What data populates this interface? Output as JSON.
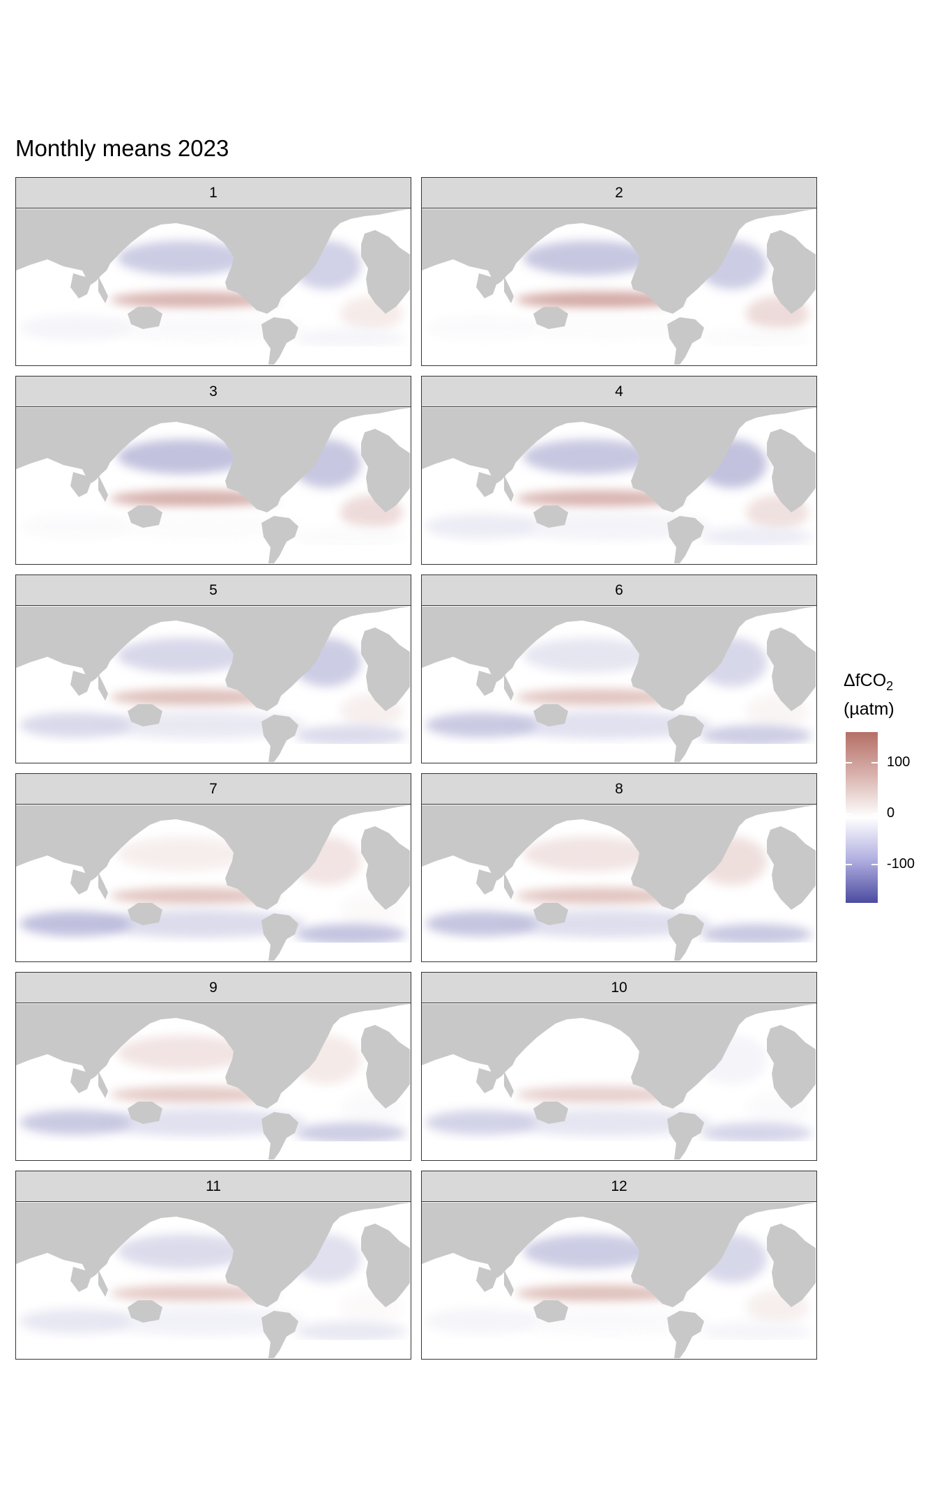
{
  "chart_data": {
    "type": "heatmap",
    "title": "Monthly means 2023",
    "facet_labels": [
      "1",
      "2",
      "3",
      "4",
      "5",
      "6",
      "7",
      "8",
      "9",
      "10",
      "11",
      "12"
    ],
    "legend": {
      "title_main": "ΔfCO",
      "title_sub": "2",
      "title_unit": "(µatm)",
      "ticks": [
        100,
        0,
        -100
      ],
      "tick_labels": [
        "100",
        "0",
        "-100"
      ],
      "range": [
        -175,
        160
      ],
      "colors": {
        "high": "#b56f66",
        "mid": "#ffffff",
        "low": "#4b4ba0"
      },
      "placement": "right"
    },
    "colors": {
      "land": "#c8c8c8",
      "ocean_missing": "#ffffff",
      "strip": "#d9d9d9"
    },
    "monthly_features": [
      {
        "month": 1,
        "eq_pacific": 70,
        "n_pacific": -50,
        "n_atlantic": -45,
        "s_ocean": -10,
        "s_atlantic": 20
      },
      {
        "month": 2,
        "eq_pacific": 80,
        "n_pacific": -55,
        "n_atlantic": -50,
        "s_ocean": -5,
        "s_atlantic": 35
      },
      {
        "month": 3,
        "eq_pacific": 75,
        "n_pacific": -60,
        "n_atlantic": -55,
        "s_ocean": -5,
        "s_atlantic": 35
      },
      {
        "month": 4,
        "eq_pacific": 70,
        "n_pacific": -55,
        "n_atlantic": -60,
        "s_ocean": -20,
        "s_atlantic": 30
      },
      {
        "month": 5,
        "eq_pacific": 60,
        "n_pacific": -40,
        "n_atlantic": -50,
        "s_ocean": -40,
        "s_atlantic": 15
      },
      {
        "month": 6,
        "eq_pacific": 55,
        "n_pacific": -25,
        "n_atlantic": -40,
        "s_ocean": -55,
        "s_atlantic": 10
      },
      {
        "month": 7,
        "eq_pacific": 55,
        "n_pacific": 15,
        "n_atlantic": 25,
        "s_ocean": -65,
        "s_atlantic": 5
      },
      {
        "month": 8,
        "eq_pacific": 55,
        "n_pacific": 25,
        "n_atlantic": 30,
        "s_ocean": -60,
        "s_atlantic": 0
      },
      {
        "month": 9,
        "eq_pacific": 50,
        "n_pacific": 25,
        "n_atlantic": 20,
        "s_ocean": -55,
        "s_atlantic": -5
      },
      {
        "month": 10,
        "eq_pacific": 45,
        "n_pacific": 0,
        "n_atlantic": -10,
        "s_ocean": -45,
        "s_atlantic": -5
      },
      {
        "month": 11,
        "eq_pacific": 50,
        "n_pacific": -35,
        "n_atlantic": -30,
        "s_ocean": -25,
        "s_atlantic": 5
      },
      {
        "month": 12,
        "eq_pacific": 60,
        "n_pacific": -50,
        "n_atlantic": -40,
        "s_ocean": -10,
        "s_atlantic": 15
      }
    ]
  }
}
